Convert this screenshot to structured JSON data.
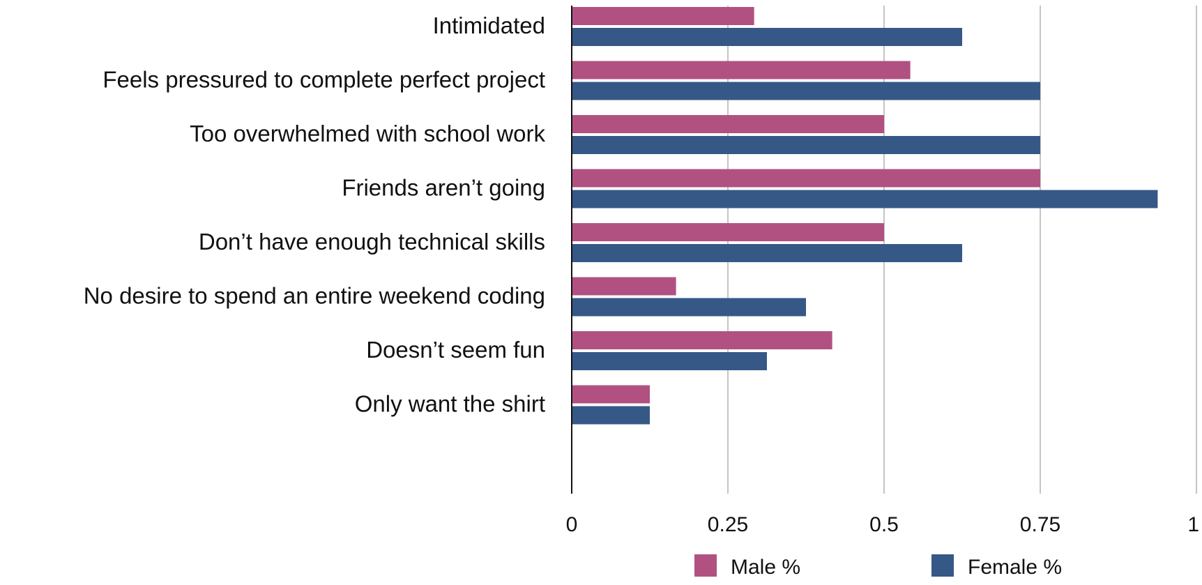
{
  "chart_data": {
    "type": "bar",
    "orientation": "horizontal",
    "title": "",
    "xlabel": "",
    "ylabel": "",
    "categories": [
      "Intimidated",
      "Feels pressured to complete perfect project",
      "Too overwhelmed with school work",
      "Friends aren’t going",
      "Don’t have enough technical skills",
      "No desire to spend an entire weekend coding",
      "Doesn’t seem fun",
      "Only want the shirt"
    ],
    "series": [
      {
        "name": "Male %",
        "color": "#b15181",
        "values": [
          0.292,
          0.542,
          0.5,
          0.75,
          0.5,
          0.167,
          0.417,
          0.125
        ]
      },
      {
        "name": "Female %",
        "color": "#365887",
        "values": [
          0.625,
          0.75,
          0.75,
          0.938,
          0.625,
          0.375,
          0.3125,
          0.125
        ]
      }
    ],
    "xlim": [
      0,
      1
    ],
    "xticks": [
      "0",
      "0.25",
      "0.5",
      "0.75",
      "1"
    ],
    "grid": true,
    "legend": "bottom"
  }
}
